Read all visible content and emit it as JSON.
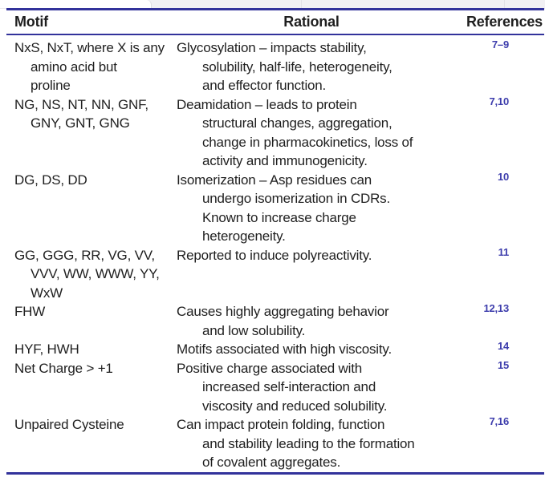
{
  "colors": {
    "rule": "#32329b",
    "reference_text": "#3d3dac",
    "body_text": "#1f1f1f",
    "edge_strip": "#f1f0f3"
  },
  "table": {
    "columns": {
      "motif": "Motif",
      "rational": "Rational",
      "references": "References"
    },
    "rows": [
      {
        "motif": "NxS, NxT, where X is any\namino acid but\nproline",
        "rational": "Glycosylation – impacts stability,\nsolubility, half-life, heterogeneity,\nand effector function.",
        "references": "7–9"
      },
      {
        "motif": "NG, NS, NT, NN, GNF,\nGNY, GNT, GNG",
        "rational": "Deamidation – leads to protein\nstructural changes, aggregation,\nchange in pharmacokinetics, loss of\nactivity and immunogenicity.",
        "references": "7,10"
      },
      {
        "motif": "DG, DS, DD",
        "rational": "Isomerization – Asp residues can\nundergo isomerization in CDRs.\nKnown to increase charge\nheterogeneity.",
        "references": "10"
      },
      {
        "motif": "GG, GGG, RR, VG, VV,\nVVV, WW, WWW, YY,\nWxW",
        "rational": "Reported to induce polyreactivity.",
        "references": "11"
      },
      {
        "motif": "FHW",
        "rational": "Causes highly aggregating behavior\nand low solubility.",
        "references": "12,13"
      },
      {
        "motif": "HYF, HWH",
        "rational": "Motifs associated with high viscosity.",
        "references": "14"
      },
      {
        "motif": "Net Charge > +1",
        "rational": "Positive charge associated with\nincreased self-interaction and\nviscosity and reduced solubility.",
        "references": "15"
      },
      {
        "motif": "Unpaired Cysteine",
        "rational": "Can impact protein folding, function\nand stability leading to the formation\nof covalent aggregates.",
        "references": "7,16"
      }
    ]
  }
}
